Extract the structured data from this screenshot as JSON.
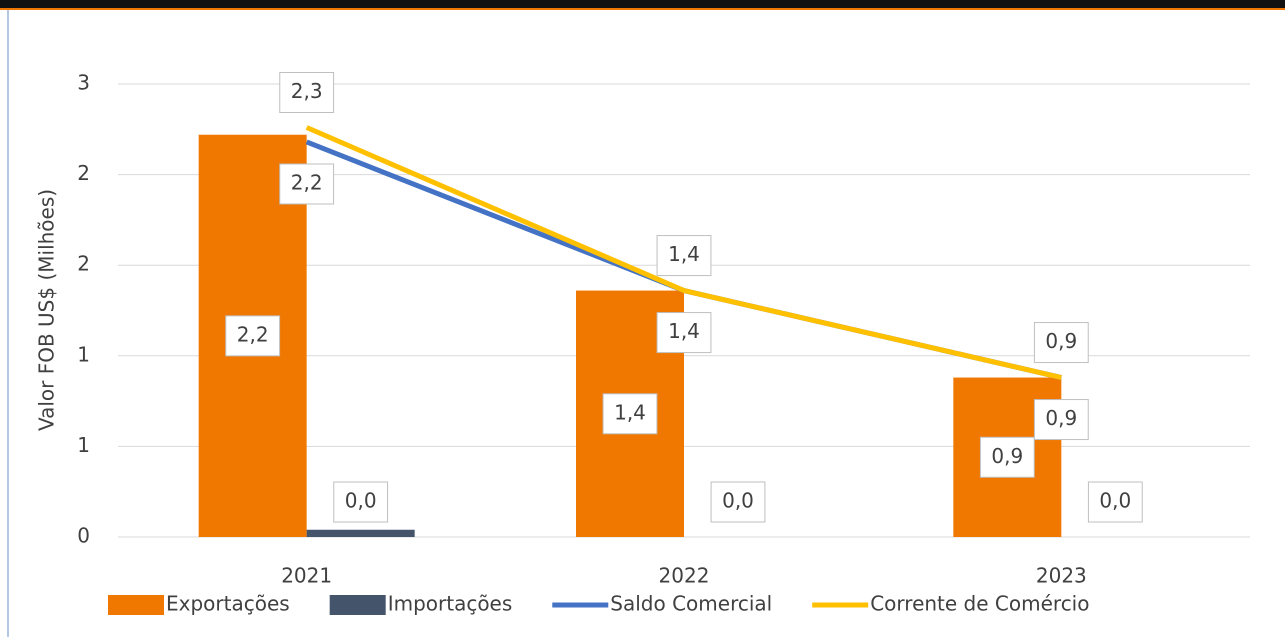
{
  "chart_data": {
    "type": "bar",
    "categories": [
      "2021",
      "2022",
      "2023"
    ],
    "ylabel": "Valor FOB US$ (Milhões)",
    "ylim": [
      0,
      2.5
    ],
    "yticks": [
      0,
      {
        "value": 0.5,
        "label": "1"
      },
      1,
      {
        "value": 1.5,
        "label": "2"
      },
      2,
      {
        "value": 2.5,
        "label": "3"
      }
    ],
    "grid": true,
    "legend": "bottom",
    "series": [
      {
        "name": "Exportações",
        "type": "bar",
        "color": "#f07800",
        "values": [
          2.22,
          1.36,
          0.88
        ],
        "value_labels": [
          "2,2",
          "1,4",
          "0,9"
        ]
      },
      {
        "name": "Importações",
        "type": "bar",
        "color": "#44546a",
        "values": [
          0.04,
          0,
          0
        ],
        "value_labels": [
          "0,0",
          "0,0",
          "0,0"
        ]
      },
      {
        "name": "Saldo Comercial",
        "type": "line",
        "color": "#4472c4",
        "values": [
          2.18,
          1.36,
          0.88
        ],
        "value_labels": [
          "2,2",
          "1,4",
          "0,9"
        ]
      },
      {
        "name": "Corrente de Comércio",
        "type": "line",
        "color": "#ffc000",
        "values": [
          2.26,
          1.36,
          0.88
        ],
        "value_labels": [
          "2,3",
          "1,4",
          "0,9"
        ]
      }
    ]
  }
}
